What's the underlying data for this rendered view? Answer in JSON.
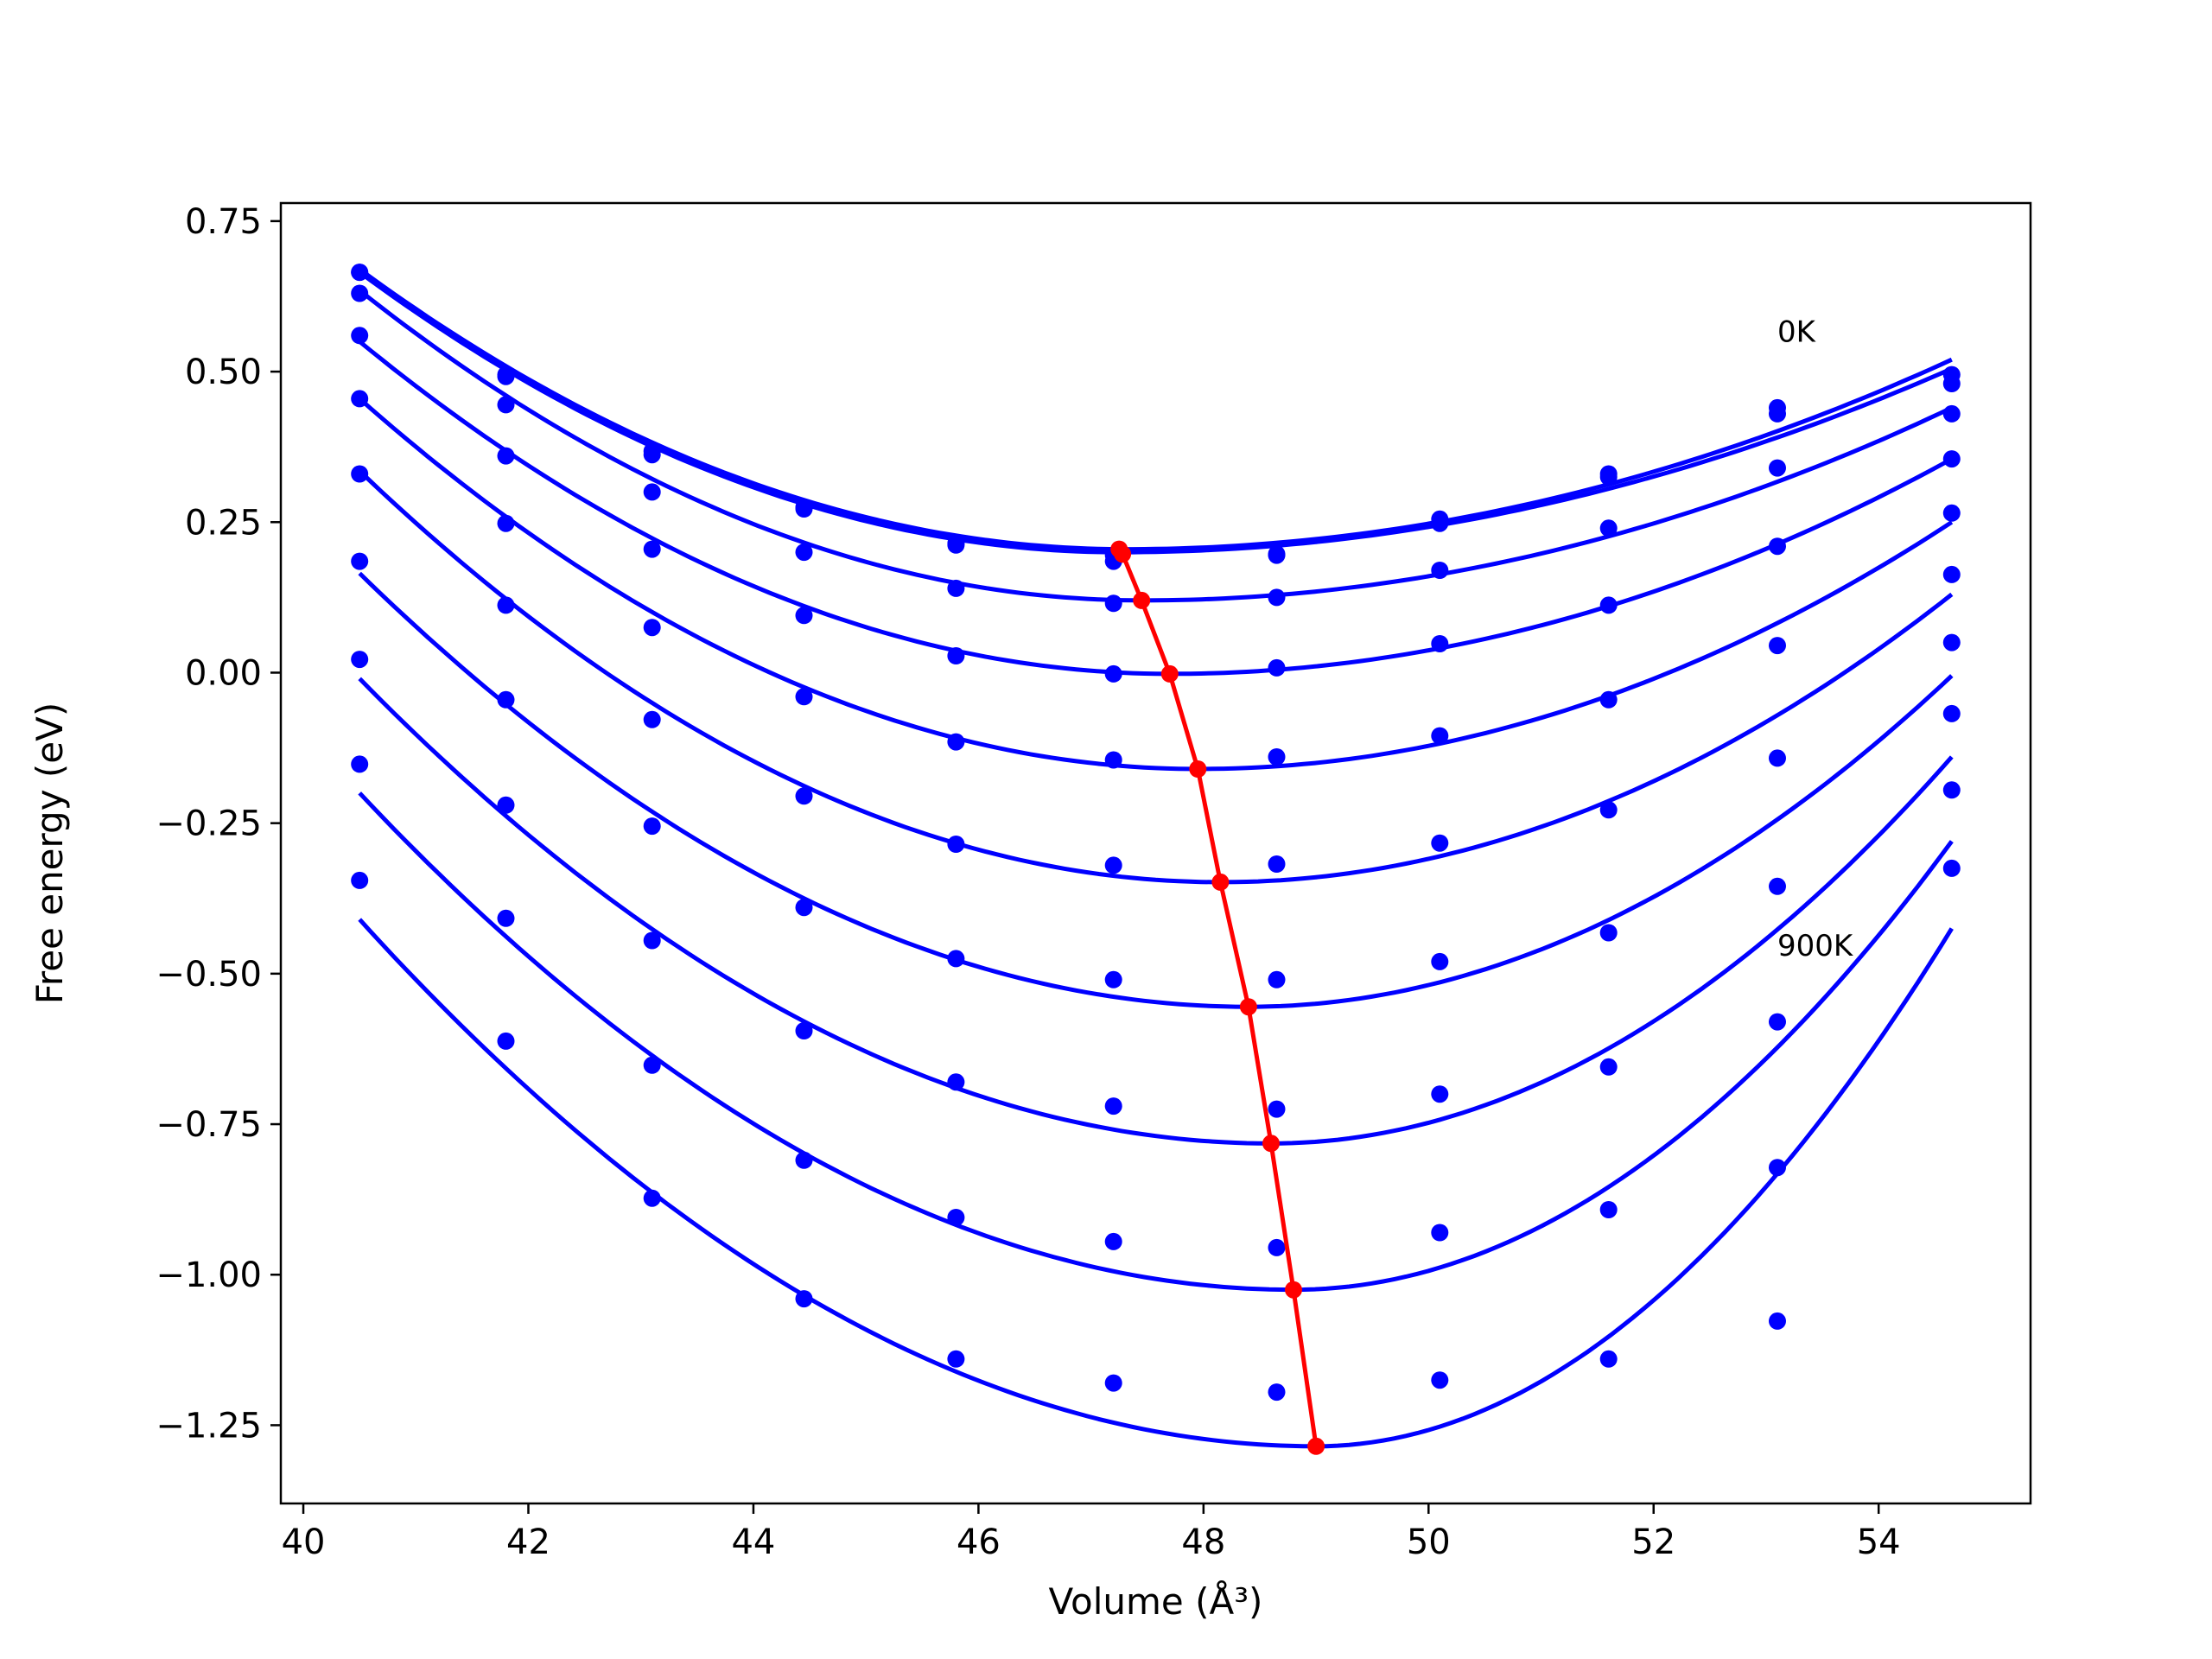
{
  "chart_data": {
    "type": "line",
    "xlabel": "Volume (Å³)",
    "ylabel": "Free energy (eV)",
    "xlim": [
      39.8,
      55.35
    ],
    "ylim": [
      -1.38,
      0.78
    ],
    "x_ticks": [
      40,
      42,
      44,
      46,
      48,
      50,
      52,
      54
    ],
    "x_tick_labels": [
      "40",
      "42",
      "44",
      "46",
      "48",
      "50",
      "52",
      "54"
    ],
    "y_ticks": [
      0.75,
      0.5,
      0.25,
      0.0,
      -0.25,
      -0.5,
      -0.75,
      -1.0,
      -1.25
    ],
    "y_tick_labels": [
      "0.75",
      "0.50",
      "0.25",
      "0.00",
      "−0.25",
      "−0.50",
      "−0.75",
      "−1.00",
      "−1.25"
    ],
    "grid": false,
    "legend": "none",
    "annotations": [
      {
        "text": "0K",
        "x": 53.1,
        "y": 0.55
      },
      {
        "text": "900K",
        "x": 53.1,
        "y": -0.47
      }
    ],
    "colors": {
      "curves": "#0000ff",
      "minimum_path": "#ff0000",
      "axes": "#000000"
    },
    "x": [
      40.5,
      41.8,
      43.1,
      44.45,
      45.8,
      47.2,
      48.65,
      50.1,
      51.6,
      53.1,
      54.65
    ],
    "fit_range": [
      40.5,
      54.65
    ],
    "series": [
      {
        "points": [
          0.665,
          0.495,
          0.368,
          0.275,
          0.215,
          0.185,
          0.195,
          0.255,
          0.33,
          0.44,
          0.495
        ],
        "fit": {
          "min_x": 47.3,
          "min_y": 0.205,
          "left": 0.67,
          "right": 0.52
        }
      },
      {
        "points": [
          0.665,
          0.492,
          0.362,
          0.272,
          0.212,
          0.195,
          0.197,
          0.248,
          0.325,
          0.43,
          0.48
        ],
        "fit": {
          "min_x": 47.25,
          "min_y": 0.2,
          "left": 0.665,
          "right": 0.505
        }
      },
      {
        "points": [
          0.63,
          0.445,
          0.3,
          0.2,
          0.14,
          0.115,
          0.125,
          0.17,
          0.24,
          0.34,
          0.43
        ],
        "fit": {
          "min_x": 47.45,
          "min_y": 0.12,
          "left": 0.635,
          "right": 0.44
        }
      },
      {
        "points": [
          0.56,
          0.36,
          0.205,
          0.095,
          0.028,
          -0.002,
          0.008,
          0.048,
          0.112,
          0.21,
          0.355
        ],
        "fit": {
          "min_x": 47.7,
          "min_y": -0.002,
          "left": 0.55,
          "right": 0.355
        }
      },
      {
        "points": [
          0.455,
          0.248,
          0.075,
          -0.04,
          -0.115,
          -0.145,
          -0.14,
          -0.105,
          -0.045,
          0.045,
          0.265
        ],
        "fit": {
          "min_x": 47.95,
          "min_y": -0.16,
          "left": 0.455,
          "right": 0.25
        }
      },
      {
        "points": [
          0.33,
          0.112,
          -0.078,
          -0.205,
          -0.285,
          -0.32,
          -0.318,
          -0.283,
          -0.228,
          -0.142,
          0.163
        ],
        "fit": {
          "min_x": 48.15,
          "min_y": -0.348,
          "left": 0.335,
          "right": 0.13
        }
      },
      {
        "points": [
          0.185,
          -0.045,
          -0.255,
          -0.39,
          -0.475,
          -0.51,
          -0.51,
          -0.48,
          -0.432,
          -0.355,
          0.05
        ],
        "fit": {
          "min_x": 48.4,
          "min_y": -0.555,
          "left": 0.165,
          "right": -0.005
        }
      },
      {
        "points": [
          0.022,
          -0.22,
          -0.445,
          -0.595,
          -0.68,
          -0.72,
          -0.725,
          -0.7,
          -0.655,
          -0.58,
          -0.068
        ],
        "fit": {
          "min_x": 48.6,
          "min_y": -0.782,
          "left": -0.01,
          "right": -0.14
        }
      },
      {
        "points": [
          -0.152,
          -0.408,
          -0.652,
          -0.81,
          -0.905,
          -0.945,
          -0.955,
          -0.93,
          -0.892,
          -0.822,
          -0.195
        ],
        "fit": {
          "min_x": 48.8,
          "min_y": -1.025,
          "left": -0.2,
          "right": -0.28
        }
      },
      {
        "points": [
          -0.345,
          -0.612,
          -0.873,
          -1.04,
          -1.14,
          -1.18,
          -1.195,
          -1.175,
          -1.14,
          -1.077,
          -0.325
        ],
        "fit": {
          "min_x": 49.0,
          "min_y": -1.285,
          "left": -0.41,
          "right": -0.425
        }
      }
    ],
    "minimum_path": [
      {
        "x": 47.25,
        "y": 0.205
      },
      {
        "x": 47.28,
        "y": 0.197
      },
      {
        "x": 47.45,
        "y": 0.12
      },
      {
        "x": 47.7,
        "y": -0.002
      },
      {
        "x": 47.95,
        "y": -0.16
      },
      {
        "x": 48.15,
        "y": -0.348
      },
      {
        "x": 48.4,
        "y": -0.555
      },
      {
        "x": 48.6,
        "y": -0.782
      },
      {
        "x": 48.8,
        "y": -1.025
      },
      {
        "x": 49.0,
        "y": -1.285
      }
    ]
  }
}
